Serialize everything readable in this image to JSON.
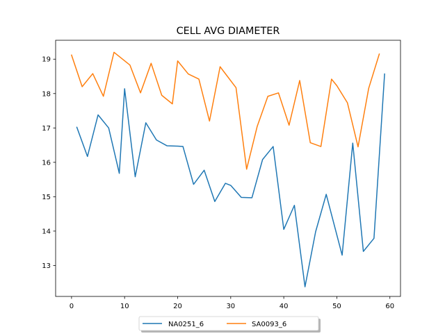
{
  "chart_data": {
    "type": "line",
    "title": "CELL AVG  DIAMETER",
    "xlabel": "",
    "ylabel": "",
    "xlim": [
      -3.0,
      62.0
    ],
    "ylim": [
      12.1,
      19.55
    ],
    "xticks": [
      0,
      10,
      20,
      30,
      40,
      50,
      60
    ],
    "yticks": [
      13,
      14,
      15,
      16,
      17,
      18,
      19
    ],
    "grid": false,
    "legend_position": "bottom-center",
    "series": [
      {
        "name": "NA0251_6",
        "color": "#1f77b4",
        "x": [
          1,
          3,
          5,
          7,
          9,
          10,
          12,
          14,
          16,
          18,
          20,
          21,
          23,
          25,
          27,
          29,
          30,
          32,
          34,
          36,
          38,
          40,
          42,
          44,
          46,
          48,
          51,
          53,
          55,
          57,
          59
        ],
        "y": [
          17.02,
          16.17,
          17.38,
          17.0,
          15.68,
          18.14,
          15.58,
          17.15,
          16.65,
          16.48,
          16.47,
          16.46,
          15.36,
          15.77,
          14.86,
          15.39,
          15.33,
          14.98,
          14.97,
          16.08,
          16.46,
          14.05,
          14.75,
          12.38,
          13.98,
          15.07,
          13.3,
          16.56,
          13.41,
          13.79,
          18.57
        ]
      },
      {
        "name": "SA0093_6",
        "color": "#ff7f0e",
        "x": [
          0,
          2,
          4,
          6,
          8,
          11,
          13,
          15,
          17,
          19,
          20,
          22,
          24,
          26,
          28,
          31,
          33,
          35,
          37,
          39,
          41,
          43,
          45,
          47,
          49,
          50,
          52,
          54,
          56,
          58
        ],
        "y": [
          19.12,
          18.2,
          18.58,
          17.92,
          19.2,
          18.83,
          18.02,
          18.88,
          17.95,
          17.7,
          18.95,
          18.57,
          18.42,
          17.2,
          18.78,
          18.17,
          15.8,
          17.05,
          17.92,
          18.02,
          17.08,
          18.38,
          16.57,
          16.46,
          18.42,
          18.23,
          17.73,
          16.45,
          18.15,
          19.15
        ]
      }
    ]
  }
}
